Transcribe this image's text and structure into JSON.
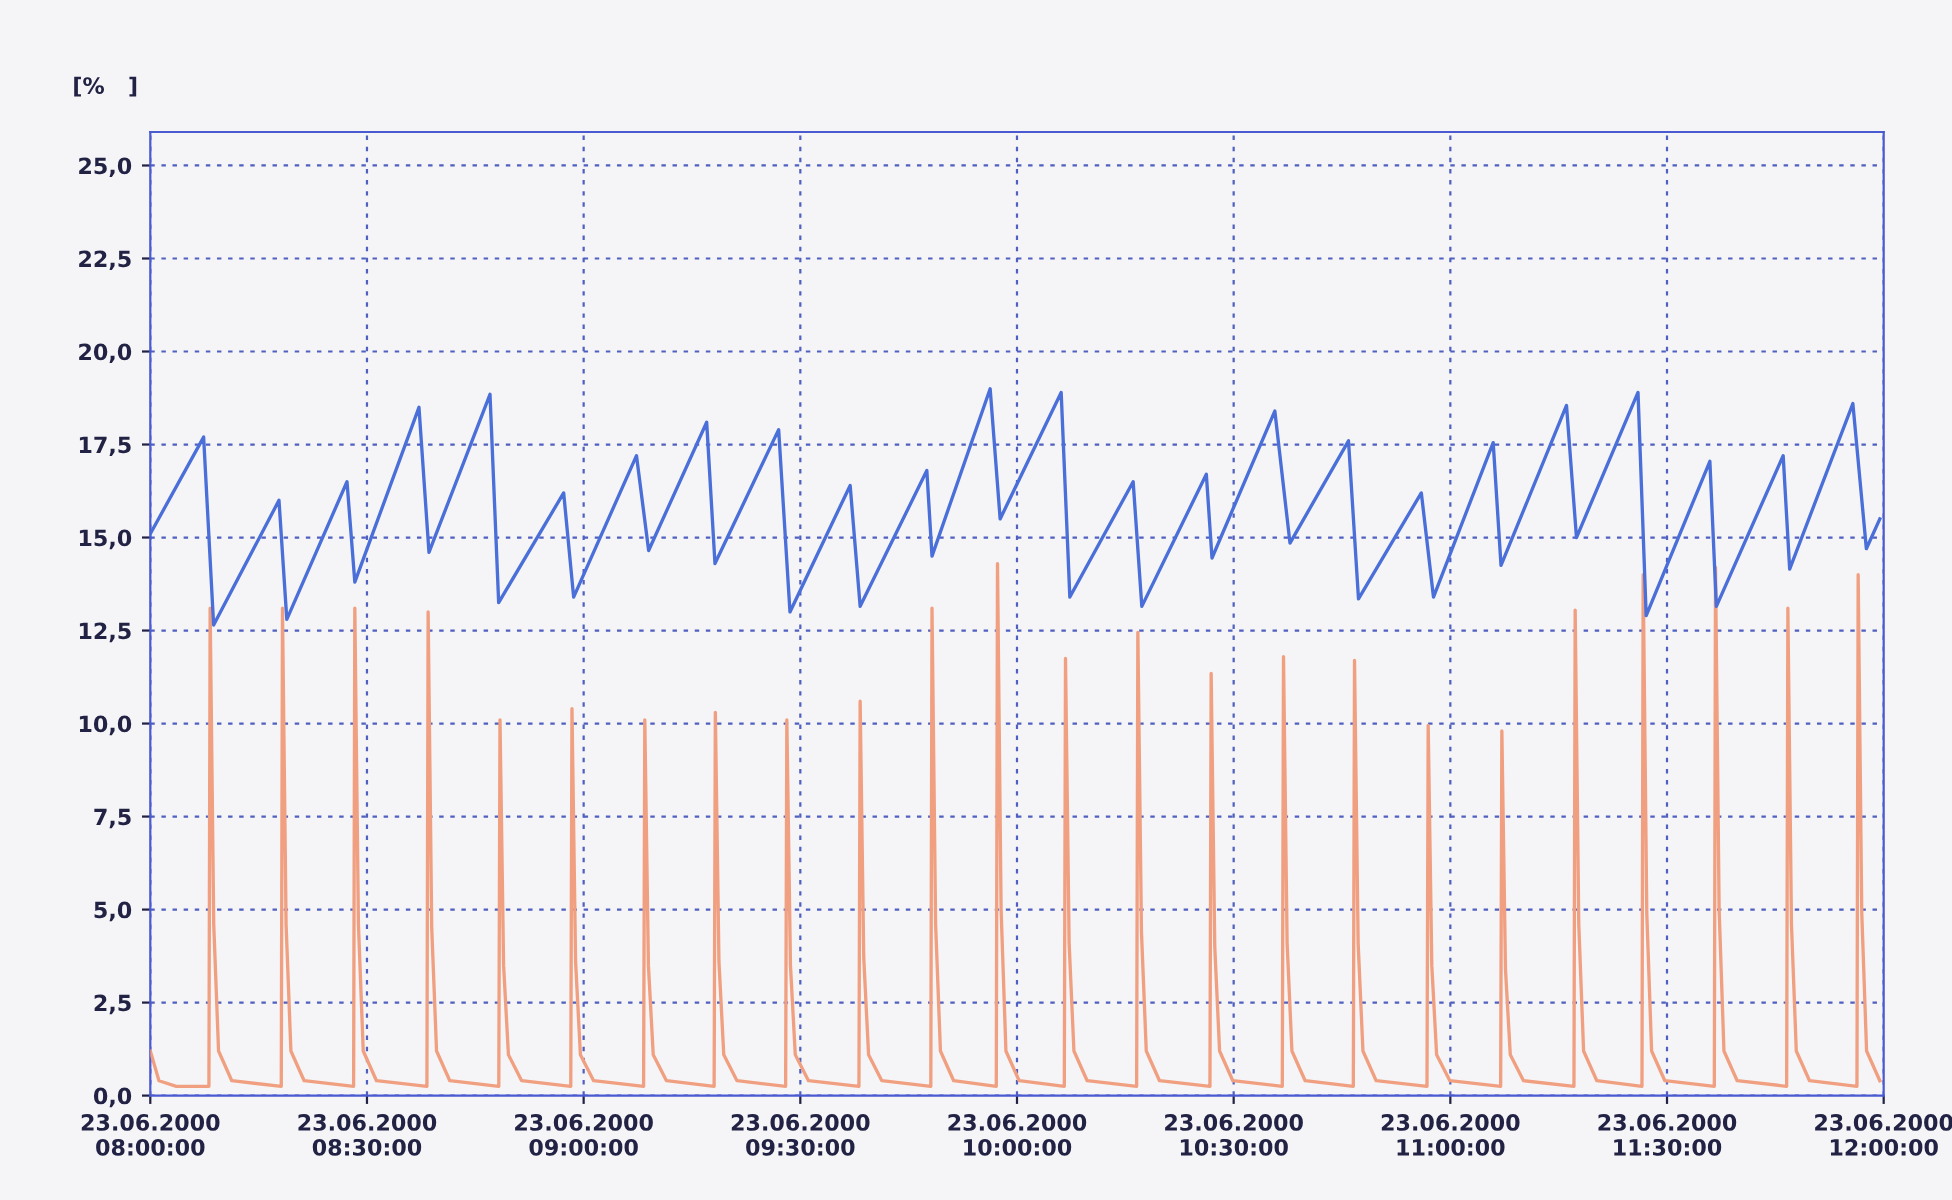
{
  "chart_data": {
    "type": "line",
    "ylabel": "[%   ]",
    "xlim": [
      "2000-06-23T08:00",
      "2000-06-23T12:00"
    ],
    "ylim": [
      0,
      25.9
    ],
    "xticks": [
      {
        "value": "2000-06-23T08:00",
        "label": "23.06.2000\n08:00:00"
      },
      {
        "value": "2000-06-23T08:30",
        "label": "23.06.2000\n08:30:00"
      },
      {
        "value": "2000-06-23T09:00",
        "label": "23.06.2000\n09:00:00"
      },
      {
        "value": "2000-06-23T09:30",
        "label": "23.06.2000\n09:30:00"
      },
      {
        "value": "2000-06-23T10:00",
        "label": "23.06.2000\n10:00:00"
      },
      {
        "value": "2000-06-23T10:30",
        "label": "23.06.2000\n10:30:00"
      },
      {
        "value": "2000-06-23T11:00",
        "label": "23.06.2000\n11:00:00"
      },
      {
        "value": "2000-06-23T11:30",
        "label": "23.06.2000\n11:30:00"
      },
      {
        "value": "2000-06-23T12:00",
        "label": "23.06.2000\n12:00:00"
      }
    ],
    "yticks": [
      {
        "value": 0,
        "label": "0,0"
      },
      {
        "value": 2.5,
        "label": "2,5"
      },
      {
        "value": 5,
        "label": "5,0"
      },
      {
        "value": 7.5,
        "label": "7,5"
      },
      {
        "value": 10,
        "label": "10,0"
      },
      {
        "value": 12.5,
        "label": "12,5"
      },
      {
        "value": 15,
        "label": "15,0"
      },
      {
        "value": 17.5,
        "label": "17,5"
      },
      {
        "value": 20,
        "label": "20,0"
      },
      {
        "value": 22.5,
        "label": "22,5"
      },
      {
        "value": 25,
        "label": "25,0"
      }
    ],
    "grid": true,
    "line_style": "solid",
    "marker": "none",
    "series": [
      {
        "color": "#f0a080",
        "x": [
          "2000-06-23T08:00:00",
          "2000-06-23T08:01:12",
          "2000-06-23T08:03:36",
          "2000-06-23T08:08:07",
          "2000-06-23T08:08:17",
          "2000-06-23T08:08:47",
          "2000-06-23T08:09:27",
          "2000-06-23T08:11:17",
          "2000-06-23T08:18:08",
          "2000-06-23T08:18:18",
          "2000-06-23T08:18:48",
          "2000-06-23T08:19:28",
          "2000-06-23T08:21:18",
          "2000-06-23T08:28:09",
          "2000-06-23T08:28:19",
          "2000-06-23T08:28:49",
          "2000-06-23T08:29:29",
          "2000-06-23T08:31:19",
          "2000-06-23T08:38:18",
          "2000-06-23T08:38:28",
          "2000-06-23T08:38:58",
          "2000-06-23T08:39:38",
          "2000-06-23T08:41:28",
          "2000-06-23T08:48:15",
          "2000-06-23T08:48:25",
          "2000-06-23T08:48:55",
          "2000-06-23T08:49:35",
          "2000-06-23T08:51:25",
          "2000-06-23T08:58:13",
          "2000-06-23T08:58:23",
          "2000-06-23T08:58:53",
          "2000-06-23T08:59:33",
          "2000-06-23T09:01:23",
          "2000-06-23T09:08:18",
          "2000-06-23T09:08:28",
          "2000-06-23T09:08:58",
          "2000-06-23T09:09:38",
          "2000-06-23T09:11:28",
          "2000-06-23T09:18:04",
          "2000-06-23T09:18:14",
          "2000-06-23T09:18:44",
          "2000-06-23T09:19:24",
          "2000-06-23T09:21:14",
          "2000-06-23T09:27:58",
          "2000-06-23T09:28:08",
          "2000-06-23T09:28:38",
          "2000-06-23T09:29:18",
          "2000-06-23T09:31:08",
          "2000-06-23T09:38:07",
          "2000-06-23T09:38:17",
          "2000-06-23T09:38:47",
          "2000-06-23T09:39:27",
          "2000-06-23T09:41:17",
          "2000-06-23T09:48:04",
          "2000-06-23T09:48:14",
          "2000-06-23T09:48:44",
          "2000-06-23T09:49:24",
          "2000-06-23T09:51:14",
          "2000-06-23T09:57:08",
          "2000-06-23T09:57:18",
          "2000-06-23T09:57:48",
          "2000-06-23T09:58:28",
          "2000-06-23T10:00:18",
          "2000-06-23T10:06:33",
          "2000-06-23T10:06:43",
          "2000-06-23T10:07:13",
          "2000-06-23T10:07:53",
          "2000-06-23T10:09:43",
          "2000-06-23T10:16:34",
          "2000-06-23T10:16:44",
          "2000-06-23T10:17:14",
          "2000-06-23T10:17:54",
          "2000-06-23T10:19:44",
          "2000-06-23T10:26:43",
          "2000-06-23T10:26:53",
          "2000-06-23T10:27:23",
          "2000-06-23T10:28:03",
          "2000-06-23T10:29:53",
          "2000-06-23T10:36:44",
          "2000-06-23T10:36:54",
          "2000-06-23T10:37:24",
          "2000-06-23T10:38:04",
          "2000-06-23T10:39:54",
          "2000-06-23T10:46:34",
          "2000-06-23T10:46:44",
          "2000-06-23T10:47:14",
          "2000-06-23T10:47:54",
          "2000-06-23T10:49:44",
          "2000-06-23T10:56:46",
          "2000-06-23T10:56:56",
          "2000-06-23T10:57:26",
          "2000-06-23T10:58:06",
          "2000-06-23T10:59:56",
          "2000-06-23T11:06:58",
          "2000-06-23T11:07:08",
          "2000-06-23T11:07:38",
          "2000-06-23T11:08:18",
          "2000-06-23T11:10:08",
          "2000-06-23T11:17:07",
          "2000-06-23T11:17:17",
          "2000-06-23T11:17:47",
          "2000-06-23T11:18:27",
          "2000-06-23T11:20:17",
          "2000-06-23T11:26:32",
          "2000-06-23T11:26:42",
          "2000-06-23T11:27:12",
          "2000-06-23T11:27:52",
          "2000-06-23T11:29:42",
          "2000-06-23T11:36:33",
          "2000-06-23T11:36:43",
          "2000-06-23T11:37:13",
          "2000-06-23T11:37:53",
          "2000-06-23T11:39:43",
          "2000-06-23T11:46:34",
          "2000-06-23T11:46:44",
          "2000-06-23T11:47:14",
          "2000-06-23T11:47:54",
          "2000-06-23T11:49:44",
          "2000-06-23T11:56:18",
          "2000-06-23T11:56:28",
          "2000-06-23T11:56:58",
          "2000-06-23T11:57:38",
          "2000-06-23T11:59:28"
        ],
        "values": [
          1.2,
          0.4,
          0.25,
          0.25,
          13.1,
          4.6,
          1.2,
          0.4,
          0.25,
          13.1,
          4.6,
          1.2,
          0.4,
          0.25,
          13.1,
          4.6,
          1.2,
          0.4,
          0.25,
          13.0,
          4.5,
          1.2,
          0.4,
          0.25,
          10.1,
          3.5,
          1.1,
          0.4,
          0.25,
          10.4,
          3.6,
          1.1,
          0.4,
          0.25,
          10.1,
          3.5,
          1.1,
          0.4,
          0.25,
          10.3,
          3.6,
          1.1,
          0.4,
          0.25,
          10.1,
          3.5,
          1.1,
          0.4,
          0.25,
          10.6,
          3.7,
          1.1,
          0.4,
          0.25,
          13.1,
          4.6,
          1.2,
          0.4,
          0.25,
          14.3,
          5.0,
          1.2,
          0.4,
          0.25,
          11.75,
          4.1,
          1.2,
          0.4,
          0.25,
          12.45,
          4.4,
          1.2,
          0.4,
          0.25,
          11.35,
          4.0,
          1.2,
          0.4,
          0.25,
          11.8,
          4.1,
          1.2,
          0.4,
          0.25,
          11.7,
          4.1,
          1.2,
          0.4,
          0.25,
          9.95,
          3.5,
          1.1,
          0.4,
          0.25,
          9.8,
          3.4,
          1.1,
          0.4,
          0.25,
          13.05,
          4.6,
          1.2,
          0.4,
          0.25,
          14.0,
          4.9,
          1.2,
          0.4,
          0.25,
          14.2,
          5.0,
          1.2,
          0.4,
          0.25,
          13.1,
          4.6,
          1.2,
          0.4,
          0.25,
          14.0,
          4.9,
          1.2,
          0.4
        ]
      },
      {
        "color": "#4a6fd8",
        "x": [
          "2000-06-23T08:00:00",
          "2000-06-23T08:07:23",
          "2000-06-23T08:08:46",
          "2000-06-23T08:17:49",
          "2000-06-23T08:18:54",
          "2000-06-23T08:27:14",
          "2000-06-23T08:28:19",
          "2000-06-23T08:37:12",
          "2000-06-23T08:38:35",
          "2000-06-23T08:47:02",
          "2000-06-23T08:48:14",
          "2000-06-23T08:57:14",
          "2000-06-23T08:58:37",
          "2000-06-23T09:07:19",
          "2000-06-23T09:09:00",
          "2000-06-23T09:17:02",
          "2000-06-23T09:18:11",
          "2000-06-23T09:27:00",
          "2000-06-23T09:28:34",
          "2000-06-23T09:36:54",
          "2000-06-23T09:38:17",
          "2000-06-23T09:47:31",
          "2000-06-23T09:48:14",
          "2000-06-23T09:56:17",
          "2000-06-23T09:57:40",
          "2000-06-23T10:06:07",
          "2000-06-23T10:07:19",
          "2000-06-23T10:16:05",
          "2000-06-23T10:17:17",
          "2000-06-23T10:26:13",
          "2000-06-23T10:27:00",
          "2000-06-23T10:35:42",
          "2000-06-23T10:37:48",
          "2000-06-23T10:45:54",
          "2000-06-23T10:47:17",
          "2000-06-23T10:55:59",
          "2000-06-23T10:57:40",
          "2000-06-23T11:05:56",
          "2000-06-23T11:07:01",
          "2000-06-23T11:16:05",
          "2000-06-23T11:17:28",
          "2000-06-23T11:25:59",
          "2000-06-23T11:27:07",
          "2000-06-23T11:35:56",
          "2000-06-23T11:36:50",
          "2000-06-23T11:46:05",
          "2000-06-23T11:46:59",
          "2000-06-23T11:55:44",
          "2000-06-23T11:57:36",
          "2000-06-23T11:59:28"
        ],
        "values": [
          15.1,
          17.7,
          12.65,
          16.0,
          12.8,
          16.5,
          13.8,
          18.5,
          14.6,
          18.85,
          13.25,
          16.2,
          13.4,
          17.2,
          14.65,
          18.1,
          14.3,
          17.9,
          13.0,
          16.4,
          13.15,
          16.8,
          14.5,
          19.0,
          15.5,
          18.9,
          13.4,
          16.5,
          13.15,
          16.7,
          14.45,
          18.4,
          14.85,
          17.6,
          13.35,
          16.2,
          13.4,
          17.55,
          14.25,
          18.55,
          15.0,
          18.9,
          12.9,
          17.05,
          13.15,
          17.2,
          14.15,
          18.6,
          14.7,
          15.5
        ]
      }
    ]
  }
}
